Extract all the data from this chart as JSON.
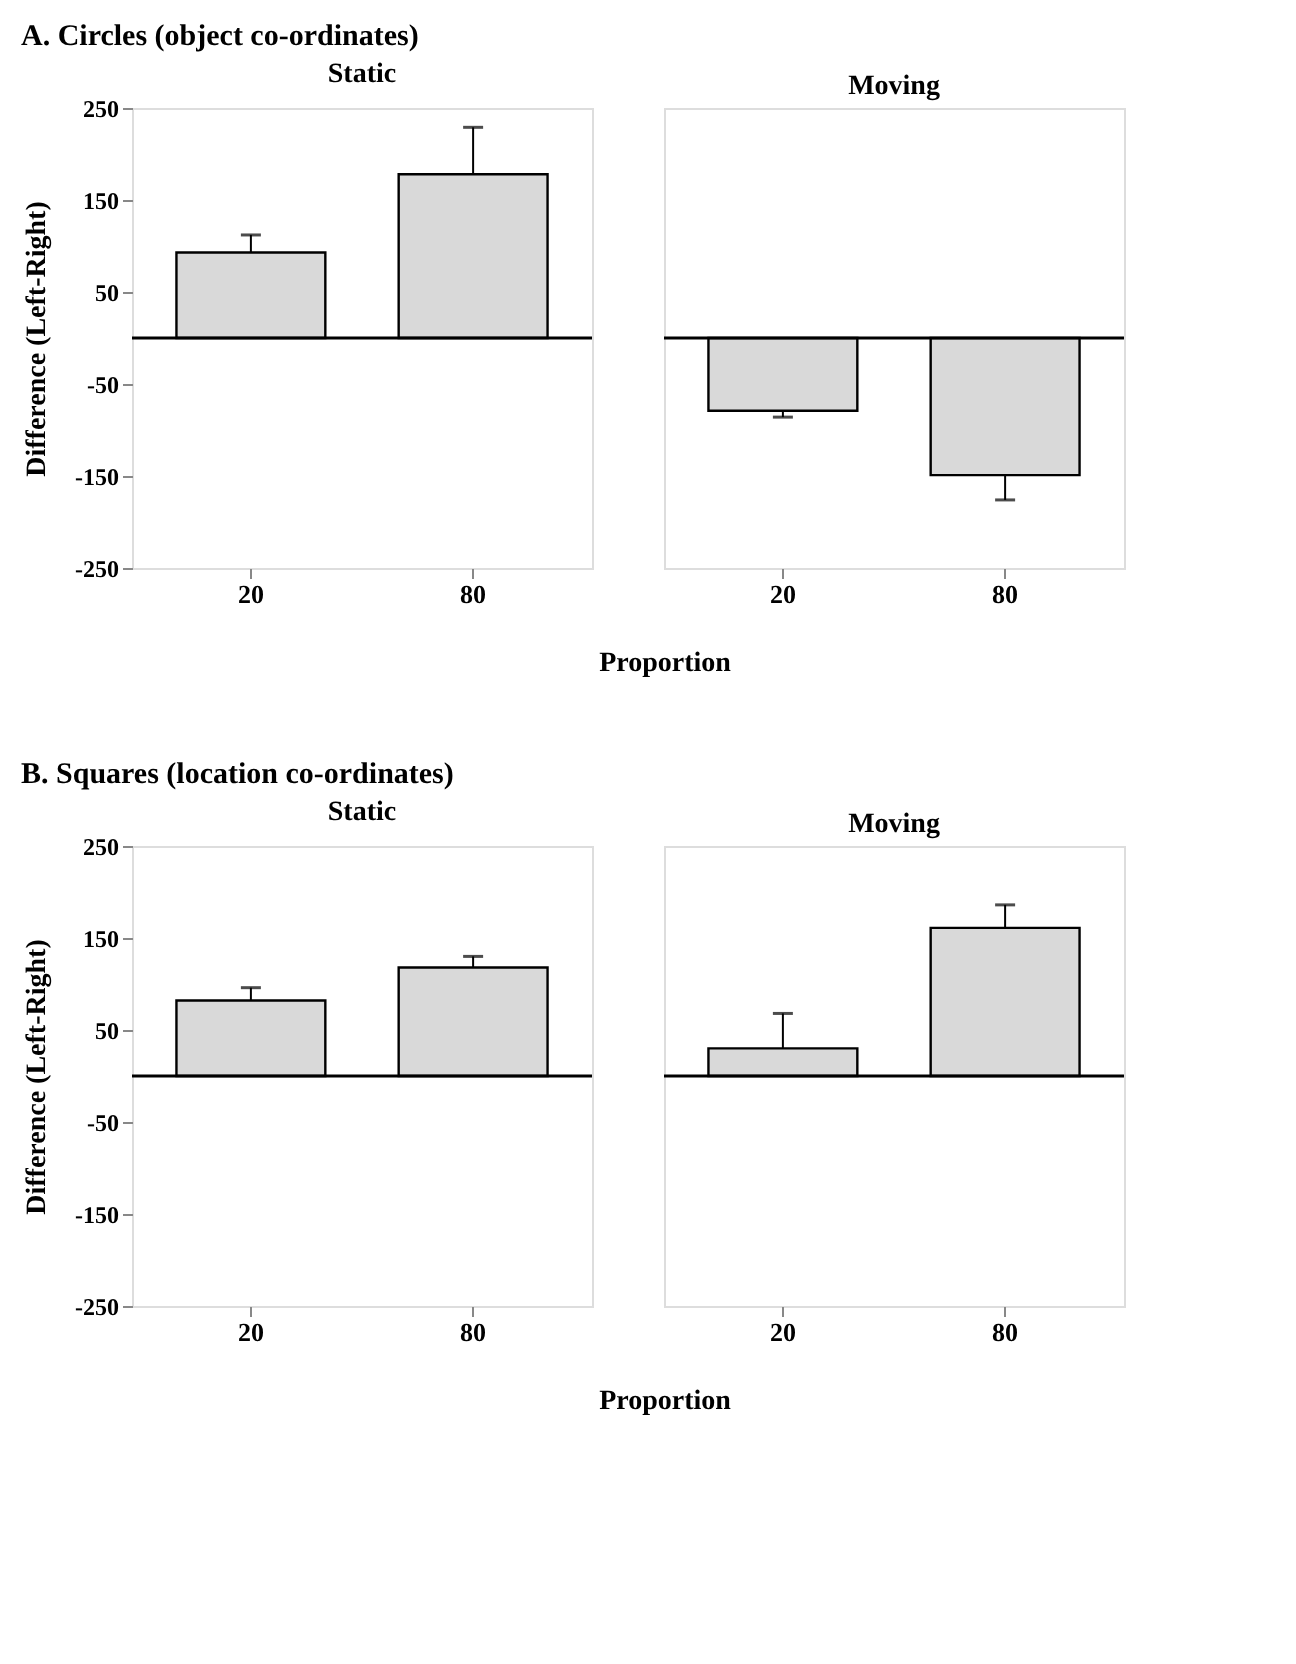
{
  "chart_data": [
    {
      "type": "bar",
      "title": "A. Circles (object co-ordinates)",
      "subtitle": "Static",
      "ylabel": "Difference  (Left-Right)",
      "categories": [
        "20",
        "80"
      ],
      "values": [
        93,
        178
      ],
      "errors": [
        [
          93,
          112
        ],
        [
          178,
          229
        ]
      ],
      "color": "#d9d9d9",
      "ylim": [
        -250,
        250
      ],
      "yticks": [
        -250,
        -150,
        -50,
        50,
        150,
        250
      ],
      "ref_lines": [
        {
          "axis": "y",
          "value": 0
        }
      ]
    },
    {
      "type": "bar",
      "subtitle": "Moving",
      "xlabel": "Proportion",
      "categories": [
        "20",
        "80"
      ],
      "values": [
        -79,
        -149
      ],
      "errors": [
        [
          -86,
          -79
        ],
        [
          -176,
          -149
        ]
      ],
      "color": "#d9d9d9",
      "ylim": [
        -250,
        250
      ],
      "yticks": [
        -250,
        -150,
        -50,
        50,
        150,
        250
      ],
      "tick_labels": "x",
      "ref_lines": [
        {
          "axis": "y",
          "value": 0
        }
      ]
    },
    {
      "type": "bar",
      "title": "B. Squares (location co-ordinates)",
      "subtitle": "Static",
      "ylabel": "Difference  (Left-Right)",
      "categories": [
        "20",
        "80"
      ],
      "values": [
        82,
        118
      ],
      "errors": [
        [
          82,
          96
        ],
        [
          118,
          130
        ]
      ],
      "color": "#d9d9d9",
      "ylim": [
        -250,
        250
      ],
      "yticks": [
        -250,
        -150,
        -50,
        50,
        150,
        250
      ],
      "ref_lines": [
        {
          "axis": "y",
          "value": 0
        }
      ]
    },
    {
      "type": "bar",
      "subtitle": "Moving",
      "xlabel": "Proportion",
      "categories": [
        "20",
        "80"
      ],
      "values": [
        30,
        161
      ],
      "errors": [
        [
          30,
          68
        ],
        [
          161,
          186
        ]
      ],
      "color": "#d9d9d9",
      "ylim": [
        -250,
        250
      ],
      "yticks": [
        -250,
        -150,
        -50,
        50,
        150,
        250
      ],
      "tick_labels": "x",
      "ref_lines": [
        {
          "axis": "y",
          "value": 0
        }
      ]
    }
  ]
}
